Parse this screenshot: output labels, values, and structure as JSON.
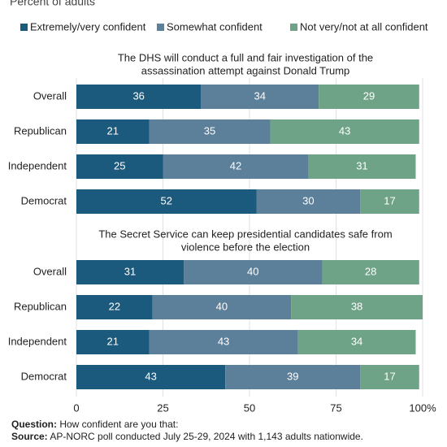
{
  "chart_data": {
    "type": "bar",
    "orientation": "horizontal",
    "stacked": true,
    "subtitle": "Percent of adults",
    "series": [
      {
        "name": "Extremely/very confident",
        "color": "#1c5a7d"
      },
      {
        "name": "Somewhat confident",
        "color": "#5c7f9a"
      },
      {
        "name": "Not very/not at all confident",
        "color": "#6fa387"
      }
    ],
    "panels": [
      {
        "title": [
          "The DHS will conduct a full and fair investigation of the",
          "assassination attempt against Donald Trump"
        ],
        "categories": [
          "Overall",
          "Republican",
          "Independent",
          "Democrat"
        ],
        "series_values": [
          [
            36,
            21,
            25,
            52
          ],
          [
            34,
            35,
            42,
            30
          ],
          [
            29,
            43,
            31,
            17
          ]
        ]
      },
      {
        "title": [
          "The Secret Service can keep presidential candidates safe from",
          "violence before the election"
        ],
        "categories": [
          "Overall",
          "Republican",
          "Independent",
          "Democrat"
        ],
        "series_values": [
          [
            31,
            22,
            21,
            43
          ],
          [
            40,
            40,
            43,
            39
          ],
          [
            28,
            38,
            34,
            17
          ]
        ]
      }
    ],
    "xlim": [
      0,
      100
    ],
    "xticks": [
      0,
      25,
      50,
      75,
      {
        "value": 100,
        "label": "100%"
      }
    ],
    "grid": true
  },
  "notes": {
    "question_label": "Question:",
    "question": "How confident are you that:",
    "source_label": "Source:",
    "source": "AP-NORC poll conducted July 25-29, 2024 with 1,143 adults nationwide."
  }
}
